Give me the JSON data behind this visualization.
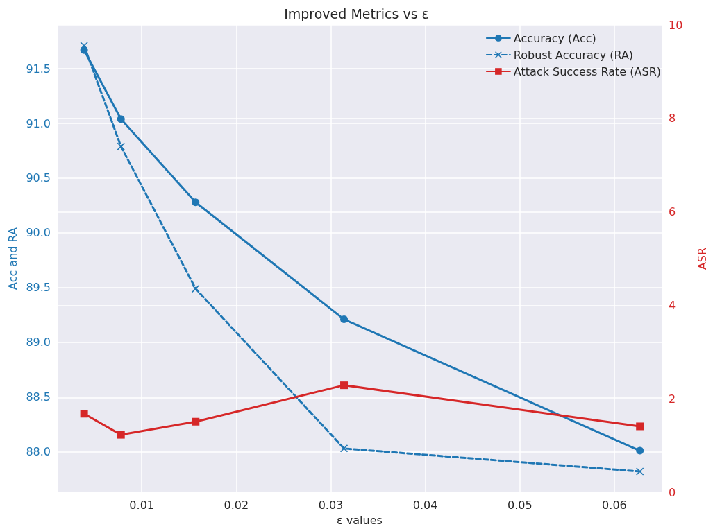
{
  "chart_data": {
    "type": "line",
    "title": "Improved Metrics vs ε",
    "xlabel": "ε values",
    "ylabel": "Acc and RA",
    "y2label": "ASR",
    "x": [
      0.0039,
      0.0078,
      0.0157,
      0.0314,
      0.0627
    ],
    "series": [
      {
        "name": "Accuracy (Acc)",
        "color": "#1f77b4",
        "values": [
          91.67,
          91.04,
          90.28,
          89.21,
          88.01
        ],
        "marker": "circle",
        "line_style": "solid"
      },
      {
        "name": "Robust Accuracy (RA)",
        "color": "#1f77b4",
        "values": [
          91.71,
          90.79,
          89.49,
          88.03,
          87.82
        ],
        "marker": "cross",
        "line_style": "dashed"
      },
      {
        "name": "Attack Success Rate (ASR)",
        "color": "#d62728",
        "values": [
          1.68,
          1.23,
          1.51,
          2.29,
          1.41
        ],
        "marker": "square",
        "line_style": "solid",
        "axis": "y2"
      }
    ],
    "xlim": [
      0.0011,
      0.065
    ],
    "xticks": [
      0.01,
      0.02,
      0.03,
      0.04,
      0.05,
      0.06
    ],
    "ylim": [
      87.63,
      91.9
    ],
    "yticks": [
      {
        "value": 88,
        "label": "88.0"
      },
      {
        "value": 88.5,
        "label": "88.5"
      },
      {
        "value": 89,
        "label": "89.0"
      },
      {
        "value": 89.5,
        "label": "89.5"
      },
      {
        "value": 90,
        "label": "90.0"
      },
      {
        "value": 90.5,
        "label": "90.5"
      },
      {
        "value": 91,
        "label": "91.0"
      },
      {
        "value": 91.5,
        "label": "91.5"
      }
    ],
    "y2lim": [
      0,
      10
    ],
    "y2ticks": [
      0,
      2,
      4,
      6,
      8,
      10
    ],
    "grid": true,
    "legend": "top right"
  }
}
